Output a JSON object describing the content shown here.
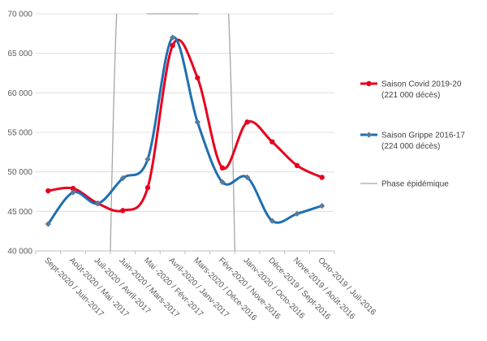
{
  "chart_data": {
    "type": "line",
    "title": "",
    "xlabel": "",
    "ylabel": "",
    "ylim": [
      40000,
      70000
    ],
    "y_ticks": [
      40000,
      45000,
      50000,
      55000,
      60000,
      65000,
      70000
    ],
    "y_tick_labels": [
      "40 000",
      "45 000",
      "50 000",
      "55 000",
      "60 000",
      "65 000",
      "70 000"
    ],
    "categories": [
      "Sept-2020 / Juin-2017",
      "Août-2020 / Mai -2017",
      "Juil-2020 / Avril-2017",
      "Juin-2020 / Mars-2017",
      "Mai -2020 / Févr-2017",
      "Avril-2020 / Janv-2017",
      "Mars-2020 / Déce-2016",
      "Févr-2020 / Nove-2016",
      "Janv-2020 / Octo-2016",
      "Déce-2019 / Sept-2016",
      "Nove-2019 / Août-2016",
      "Octo-2019 / Juil-2016"
    ],
    "series": [
      {
        "name": "Saison Covid 2019-20",
        "note": "(221 000 décès)",
        "color": "#e6001f",
        "values": [
          47600,
          47900,
          46000,
          45100,
          48000,
          66000,
          61900,
          50500,
          56300,
          53800,
          50800,
          49300
        ]
      },
      {
        "name": "Saison Grippe 2016-17",
        "note": "(224 000 décès)",
        "color": "#1f6fb0",
        "values": [
          43400,
          47400,
          46000,
          49200,
          51600,
          67000,
          56300,
          48700,
          49300,
          43800,
          44700,
          45700
        ]
      }
    ],
    "epidemic_phase": {
      "name": "Phase épidémique",
      "color": "#a6a6a6",
      "start_category": 2.5,
      "peak_category": 5,
      "end_category": 7.5
    },
    "legend_position": "right"
  }
}
